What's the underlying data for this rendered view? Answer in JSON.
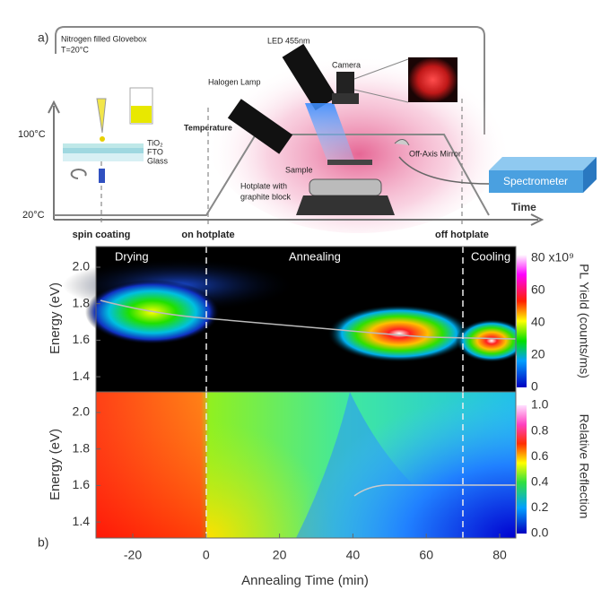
{
  "panel_a": {
    "label": "a)",
    "glovebox": "Nitrogen filled Glovebox",
    "glovebox_temp": "T=20°C",
    "led": "LED 455nm",
    "halogen": "Halogen Lamp",
    "camera": "Camera",
    "temperature": "Temperature",
    "layers": [
      "TiO₂",
      "FTO",
      "Glass"
    ],
    "sample": "Sample",
    "mirror": "Off-Axis Mirror",
    "hotplate": [
      "Hotplate with",
      "graphite block"
    ],
    "spectrometer": "Spectrometer",
    "time": "Time",
    "temp_high": "100°C",
    "temp_low": "20°C",
    "steps": [
      "spin coating",
      "on hotplate",
      "off hotplate"
    ]
  },
  "panel_b": {
    "label": "b)",
    "phases": [
      "Drying",
      "Annealing",
      "Cooling"
    ],
    "top": {
      "y_label": "Energy (eV)",
      "yticks": [
        "2.0",
        "1.8",
        "1.6",
        "1.4"
      ],
      "colorbar_ticks": [
        "80 x10⁹",
        "60",
        "40",
        "20",
        "0"
      ],
      "colorbar_label": "PL Yield (counts/ms)"
    },
    "bottom": {
      "y_label": "Energy (eV)",
      "yticks": [
        "2.0",
        "1.8",
        "1.6",
        "1.4"
      ],
      "colorbar_ticks": [
        "1.0",
        "0.8",
        "0.6",
        "0.4",
        "0.2",
        "0.0"
      ],
      "colorbar_label": "Relative Reflection"
    },
    "xticks": [
      "-20",
      "0",
      "20",
      "40",
      "60",
      "80"
    ],
    "x_label": "Annealing Time (min)"
  }
}
